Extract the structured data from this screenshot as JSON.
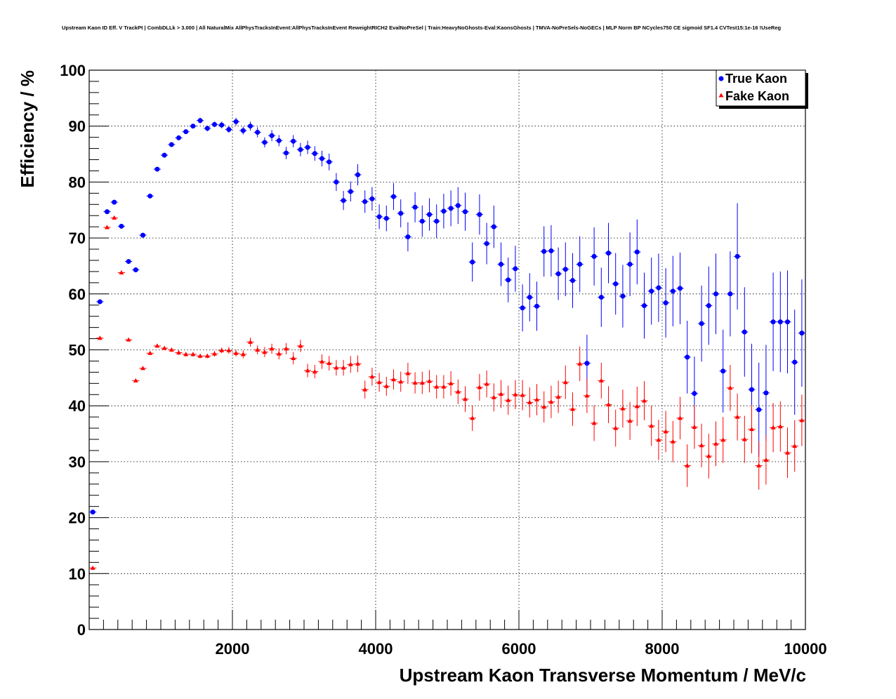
{
  "chart_data": {
    "type": "scatter",
    "title": "Upstream Kaon ID Eff. V TrackPt | CombDLLk > 3.000 | All NaturalMix AllPhysTracksInEvent:AllPhysTracksInEvent ReweightRICH2 EvalNoPreSel | Train:HeavyNoGhosts-Eval:KaonsGhosts | TMVA-NoPreSels-NoGECs | MLP Norm BP NCycles750 CE sigmoid SF1.4 CVTest15:1e-16 !UseReg",
    "xlabel": "Upstream Kaon Transverse Momentum / MeV/c",
    "ylabel": "Efficiency / %",
    "xlim": [
      0,
      10000
    ],
    "ylim": [
      0,
      100
    ],
    "x_ticks": [
      2000,
      4000,
      6000,
      8000,
      10000
    ],
    "y_ticks": [
      0,
      10,
      20,
      30,
      40,
      50,
      60,
      70,
      80,
      90,
      100
    ],
    "grid": true,
    "legend_position": "top-right",
    "series": [
      {
        "name": "True Kaon",
        "color": "#0000ff",
        "marker": "circle",
        "points": [
          [
            50,
            21.0,
            0.3
          ],
          [
            150,
            58.6,
            0.4
          ],
          [
            250,
            74.7,
            0.4
          ],
          [
            350,
            76.4,
            0.4
          ],
          [
            450,
            72.1,
            0.4
          ],
          [
            550,
            65.8,
            0.4
          ],
          [
            650,
            64.3,
            0.4
          ],
          [
            750,
            70.5,
            0.4
          ],
          [
            850,
            77.5,
            0.4
          ],
          [
            950,
            82.3,
            0.4
          ],
          [
            1050,
            84.8,
            0.4
          ],
          [
            1150,
            86.7,
            0.4
          ],
          [
            1250,
            87.9,
            0.4
          ],
          [
            1350,
            89.0,
            0.4
          ],
          [
            1450,
            90.0,
            0.4
          ],
          [
            1550,
            91.0,
            0.5
          ],
          [
            1650,
            89.6,
            0.5
          ],
          [
            1750,
            90.3,
            0.5
          ],
          [
            1850,
            90.2,
            0.6
          ],
          [
            1950,
            89.4,
            0.6
          ],
          [
            2050,
            90.8,
            0.7
          ],
          [
            2150,
            89.2,
            0.7
          ],
          [
            2250,
            90.0,
            0.8
          ],
          [
            2350,
            88.9,
            0.9
          ],
          [
            2450,
            87.1,
            0.9
          ],
          [
            2550,
            88.3,
            1.0
          ],
          [
            2650,
            87.4,
            1.0
          ],
          [
            2750,
            85.2,
            1.1
          ],
          [
            2850,
            87.3,
            1.1
          ],
          [
            2950,
            85.8,
            1.2
          ],
          [
            3050,
            86.2,
            1.2
          ],
          [
            3150,
            85.1,
            1.3
          ],
          [
            3250,
            84.2,
            1.4
          ],
          [
            3350,
            83.6,
            1.5
          ],
          [
            3450,
            80.0,
            1.6
          ],
          [
            3550,
            76.7,
            1.7
          ],
          [
            3650,
            78.3,
            1.8
          ],
          [
            3750,
            81.3,
            1.9
          ],
          [
            3850,
            76.5,
            2.0
          ],
          [
            3950,
            77.0,
            2.1
          ],
          [
            4050,
            73.8,
            2.2
          ],
          [
            4150,
            73.5,
            2.3
          ],
          [
            4250,
            77.4,
            2.4
          ],
          [
            4350,
            74.4,
            2.5
          ],
          [
            4450,
            70.2,
            2.6
          ],
          [
            4550,
            75.5,
            2.7
          ],
          [
            4650,
            73.0,
            2.8
          ],
          [
            4750,
            74.2,
            2.9
          ],
          [
            4850,
            73.0,
            3.0
          ],
          [
            4950,
            74.8,
            3.1
          ],
          [
            5050,
            75.3,
            3.2
          ],
          [
            5150,
            75.8,
            3.3
          ],
          [
            5250,
            74.7,
            3.4
          ],
          [
            5350,
            65.7,
            3.5
          ],
          [
            5450,
            74.2,
            3.6
          ],
          [
            5550,
            69.0,
            3.7
          ],
          [
            5650,
            72.0,
            3.8
          ],
          [
            5750,
            65.3,
            3.9
          ],
          [
            5850,
            62.5,
            4.0
          ],
          [
            5950,
            64.5,
            4.1
          ],
          [
            6050,
            57.5,
            4.2
          ],
          [
            6150,
            59.4,
            4.3
          ],
          [
            6250,
            57.8,
            4.4
          ],
          [
            6350,
            67.6,
            4.5
          ],
          [
            6450,
            67.7,
            4.6
          ],
          [
            6550,
            63.6,
            4.7
          ],
          [
            6650,
            64.4,
            4.8
          ],
          [
            6750,
            62.4,
            4.9
          ],
          [
            6850,
            65.3,
            5.0
          ],
          [
            6950,
            47.6,
            5.1
          ],
          [
            7050,
            66.7,
            5.2
          ],
          [
            7150,
            59.4,
            5.3
          ],
          [
            7250,
            67.3,
            5.4
          ],
          [
            7350,
            61.8,
            5.5
          ],
          [
            7450,
            59.6,
            5.6
          ],
          [
            7550,
            65.3,
            5.7
          ],
          [
            7650,
            67.5,
            5.8
          ],
          [
            7750,
            57.9,
            5.9
          ],
          [
            7850,
            60.5,
            6.0
          ],
          [
            7950,
            61.1,
            6.1
          ],
          [
            8050,
            58.4,
            6.2
          ],
          [
            8150,
            60.5,
            6.3
          ],
          [
            8250,
            61.0,
            6.4
          ],
          [
            8350,
            48.7,
            6.5
          ],
          [
            8450,
            42.2,
            6.6
          ],
          [
            8550,
            54.7,
            6.8
          ],
          [
            8650,
            57.9,
            7.0
          ],
          [
            8750,
            60.0,
            7.2
          ],
          [
            8850,
            46.2,
            7.4
          ],
          [
            8950,
            60.0,
            7.6
          ],
          [
            9050,
            66.7,
            9.5
          ],
          [
            9150,
            53.2,
            8.0
          ],
          [
            9250,
            42.9,
            8.2
          ],
          [
            9350,
            39.3,
            8.4
          ],
          [
            9450,
            42.3,
            8.6
          ],
          [
            9550,
            55.0,
            8.8
          ],
          [
            9650,
            55.0,
            9.0
          ],
          [
            9750,
            55.0,
            9.2
          ],
          [
            9850,
            47.8,
            9.4
          ],
          [
            9950,
            53.0,
            9.6
          ]
        ]
      },
      {
        "name": "Fake Kaon",
        "color": "#ff0000",
        "marker": "triangle",
        "points": [
          [
            50,
            11.0,
            0.2
          ],
          [
            150,
            52.1,
            0.3
          ],
          [
            250,
            71.9,
            0.3
          ],
          [
            350,
            73.6,
            0.3
          ],
          [
            450,
            63.8,
            0.3
          ],
          [
            550,
            51.8,
            0.3
          ],
          [
            650,
            44.5,
            0.3
          ],
          [
            750,
            46.7,
            0.3
          ],
          [
            850,
            49.4,
            0.3
          ],
          [
            950,
            50.7,
            0.3
          ],
          [
            1050,
            50.3,
            0.3
          ],
          [
            1150,
            50.0,
            0.3
          ],
          [
            1250,
            49.5,
            0.4
          ],
          [
            1350,
            49.2,
            0.4
          ],
          [
            1450,
            49.2,
            0.4
          ],
          [
            1550,
            48.9,
            0.4
          ],
          [
            1650,
            48.9,
            0.4
          ],
          [
            1750,
            49.3,
            0.5
          ],
          [
            1850,
            49.9,
            0.5
          ],
          [
            1950,
            49.9,
            0.6
          ],
          [
            2050,
            49.4,
            0.6
          ],
          [
            2150,
            49.2,
            0.7
          ],
          [
            2250,
            51.4,
            0.8
          ],
          [
            2350,
            50.0,
            0.8
          ],
          [
            2450,
            49.6,
            0.9
          ],
          [
            2550,
            50.2,
            0.9
          ],
          [
            2650,
            49.3,
            1.0
          ],
          [
            2750,
            50.2,
            1.0
          ],
          [
            2850,
            48.5,
            1.1
          ],
          [
            2950,
            50.7,
            1.1
          ],
          [
            3050,
            46.3,
            1.2
          ],
          [
            3150,
            46.1,
            1.2
          ],
          [
            3250,
            47.9,
            1.3
          ],
          [
            3350,
            47.6,
            1.3
          ],
          [
            3450,
            46.8,
            1.4
          ],
          [
            3550,
            46.8,
            1.4
          ],
          [
            3650,
            47.4,
            1.5
          ],
          [
            3750,
            47.5,
            1.5
          ],
          [
            3850,
            42.9,
            1.6
          ],
          [
            3950,
            45.2,
            1.6
          ],
          [
            4050,
            44.2,
            1.7
          ],
          [
            4150,
            43.5,
            1.7
          ],
          [
            4250,
            44.7,
            1.8
          ],
          [
            4350,
            44.3,
            1.8
          ],
          [
            4450,
            45.8,
            1.9
          ],
          [
            4550,
            44.1,
            1.9
          ],
          [
            4650,
            44.1,
            2.0
          ],
          [
            4750,
            44.4,
            2.0
          ],
          [
            4850,
            43.4,
            2.1
          ],
          [
            4950,
            43.4,
            2.1
          ],
          [
            5050,
            44.0,
            2.2
          ],
          [
            5150,
            42.5,
            2.2
          ],
          [
            5250,
            41.2,
            2.3
          ],
          [
            5350,
            37.8,
            2.3
          ],
          [
            5450,
            43.3,
            2.4
          ],
          [
            5550,
            43.9,
            2.4
          ],
          [
            5650,
            41.5,
            2.5
          ],
          [
            5750,
            42.1,
            2.5
          ],
          [
            5850,
            41.0,
            2.6
          ],
          [
            5950,
            42.0,
            2.6
          ],
          [
            6050,
            41.9,
            2.7
          ],
          [
            6150,
            40.6,
            2.7
          ],
          [
            6250,
            41.1,
            2.8
          ],
          [
            6350,
            39.8,
            2.8
          ],
          [
            6450,
            40.7,
            2.9
          ],
          [
            6550,
            41.6,
            2.9
          ],
          [
            6650,
            44.2,
            3.0
          ],
          [
            6750,
            39.4,
            3.0
          ],
          [
            6850,
            47.5,
            3.1
          ],
          [
            6950,
            41.8,
            3.1
          ],
          [
            7050,
            36.9,
            3.2
          ],
          [
            7150,
            44.5,
            3.2
          ],
          [
            7250,
            40.2,
            3.3
          ],
          [
            7350,
            36.0,
            3.3
          ],
          [
            7450,
            39.5,
            3.4
          ],
          [
            7550,
            37.3,
            3.4
          ],
          [
            7650,
            39.9,
            3.5
          ],
          [
            7750,
            40.9,
            3.5
          ],
          [
            7850,
            36.4,
            3.6
          ],
          [
            7950,
            33.9,
            3.6
          ],
          [
            8050,
            35.4,
            3.7
          ],
          [
            8150,
            33.6,
            3.7
          ],
          [
            8250,
            37.8,
            3.8
          ],
          [
            8350,
            29.3,
            3.8
          ],
          [
            8450,
            36.2,
            3.9
          ],
          [
            8550,
            32.9,
            3.9
          ],
          [
            8650,
            31.0,
            4.0
          ],
          [
            8750,
            33.2,
            4.0
          ],
          [
            8850,
            33.9,
            4.1
          ],
          [
            8950,
            43.2,
            4.1
          ],
          [
            9050,
            38.0,
            4.2
          ],
          [
            9150,
            34.0,
            4.2
          ],
          [
            9250,
            35.8,
            4.3
          ],
          [
            9350,
            29.3,
            4.3
          ],
          [
            9450,
            30.3,
            4.4
          ],
          [
            9550,
            36.1,
            4.4
          ],
          [
            9650,
            36.3,
            4.5
          ],
          [
            9750,
            31.6,
            4.5
          ],
          [
            9850,
            32.8,
            4.6
          ],
          [
            9950,
            37.4,
            4.6
          ]
        ]
      }
    ]
  }
}
